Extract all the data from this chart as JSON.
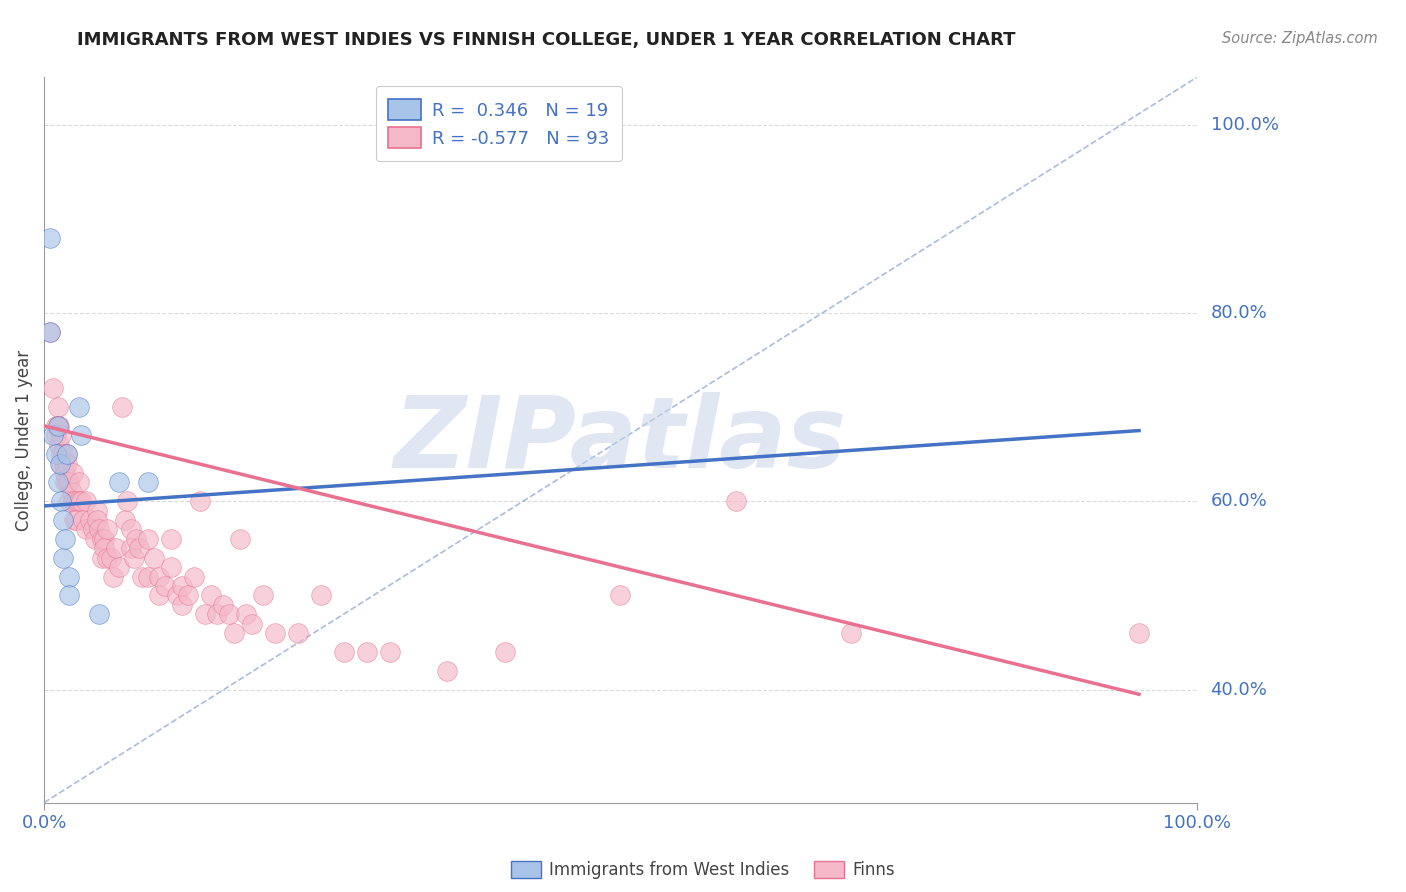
{
  "title": "IMMIGRANTS FROM WEST INDIES VS FINNISH COLLEGE, UNDER 1 YEAR CORRELATION CHART",
  "source": "Source: ZipAtlas.com",
  "ylabel": "College, Under 1 year",
  "xlim": [
    0.0,
    1.0
  ],
  "ylim": [
    0.28,
    1.05
  ],
  "y_tick_positions": [
    0.4,
    0.6,
    0.8,
    1.0
  ],
  "y_tick_labels": [
    "40.0%",
    "60.0%",
    "80.0%",
    "100.0%"
  ],
  "color_blue": "#a8c4e8",
  "color_pink": "#f4b8c8",
  "line_blue": "#4472c4",
  "line_pink": "#e87090",
  "dashed_color": "#7090c8",
  "watermark_color": "#c8d4e8",
  "blue_points": [
    [
      0.005,
      0.88
    ],
    [
      0.005,
      0.78
    ],
    [
      0.008,
      0.67
    ],
    [
      0.01,
      0.65
    ],
    [
      0.012,
      0.68
    ],
    [
      0.012,
      0.62
    ],
    [
      0.014,
      0.64
    ],
    [
      0.015,
      0.6
    ],
    [
      0.016,
      0.58
    ],
    [
      0.016,
      0.54
    ],
    [
      0.018,
      0.56
    ],
    [
      0.02,
      0.65
    ],
    [
      0.022,
      0.52
    ],
    [
      0.022,
      0.5
    ],
    [
      0.03,
      0.7
    ],
    [
      0.032,
      0.67
    ],
    [
      0.048,
      0.48
    ],
    [
      0.065,
      0.62
    ],
    [
      0.09,
      0.62
    ]
  ],
  "pink_points": [
    [
      0.005,
      0.78
    ],
    [
      0.008,
      0.72
    ],
    [
      0.01,
      0.68
    ],
    [
      0.01,
      0.67
    ],
    [
      0.012,
      0.7
    ],
    [
      0.012,
      0.68
    ],
    [
      0.013,
      0.68
    ],
    [
      0.013,
      0.66
    ],
    [
      0.015,
      0.67
    ],
    [
      0.015,
      0.65
    ],
    [
      0.015,
      0.64
    ],
    [
      0.016,
      0.65
    ],
    [
      0.017,
      0.64
    ],
    [
      0.018,
      0.63
    ],
    [
      0.018,
      0.62
    ],
    [
      0.02,
      0.65
    ],
    [
      0.02,
      0.64
    ],
    [
      0.02,
      0.62
    ],
    [
      0.022,
      0.62
    ],
    [
      0.022,
      0.6
    ],
    [
      0.024,
      0.61
    ],
    [
      0.025,
      0.63
    ],
    [
      0.025,
      0.6
    ],
    [
      0.026,
      0.58
    ],
    [
      0.028,
      0.6
    ],
    [
      0.028,
      0.58
    ],
    [
      0.03,
      0.62
    ],
    [
      0.03,
      0.6
    ],
    [
      0.032,
      0.6
    ],
    [
      0.034,
      0.58
    ],
    [
      0.036,
      0.6
    ],
    [
      0.036,
      0.57
    ],
    [
      0.04,
      0.58
    ],
    [
      0.042,
      0.57
    ],
    [
      0.044,
      0.56
    ],
    [
      0.046,
      0.59
    ],
    [
      0.046,
      0.58
    ],
    [
      0.048,
      0.57
    ],
    [
      0.05,
      0.56
    ],
    [
      0.05,
      0.54
    ],
    [
      0.052,
      0.56
    ],
    [
      0.052,
      0.55
    ],
    [
      0.055,
      0.57
    ],
    [
      0.055,
      0.54
    ],
    [
      0.058,
      0.54
    ],
    [
      0.06,
      0.52
    ],
    [
      0.062,
      0.55
    ],
    [
      0.065,
      0.53
    ],
    [
      0.068,
      0.7
    ],
    [
      0.07,
      0.58
    ],
    [
      0.072,
      0.6
    ],
    [
      0.075,
      0.57
    ],
    [
      0.075,
      0.55
    ],
    [
      0.078,
      0.54
    ],
    [
      0.08,
      0.56
    ],
    [
      0.082,
      0.55
    ],
    [
      0.085,
      0.52
    ],
    [
      0.09,
      0.56
    ],
    [
      0.09,
      0.52
    ],
    [
      0.095,
      0.54
    ],
    [
      0.1,
      0.52
    ],
    [
      0.1,
      0.5
    ],
    [
      0.105,
      0.51
    ],
    [
      0.11,
      0.56
    ],
    [
      0.11,
      0.53
    ],
    [
      0.115,
      0.5
    ],
    [
      0.12,
      0.51
    ],
    [
      0.12,
      0.49
    ],
    [
      0.125,
      0.5
    ],
    [
      0.13,
      0.52
    ],
    [
      0.135,
      0.6
    ],
    [
      0.14,
      0.48
    ],
    [
      0.145,
      0.5
    ],
    [
      0.15,
      0.48
    ],
    [
      0.155,
      0.49
    ],
    [
      0.16,
      0.48
    ],
    [
      0.165,
      0.46
    ],
    [
      0.17,
      0.56
    ],
    [
      0.175,
      0.48
    ],
    [
      0.18,
      0.47
    ],
    [
      0.19,
      0.5
    ],
    [
      0.2,
      0.46
    ],
    [
      0.22,
      0.46
    ],
    [
      0.24,
      0.5
    ],
    [
      0.26,
      0.44
    ],
    [
      0.28,
      0.44
    ],
    [
      0.3,
      0.44
    ],
    [
      0.35,
      0.42
    ],
    [
      0.4,
      0.44
    ],
    [
      0.5,
      0.5
    ],
    [
      0.6,
      0.6
    ],
    [
      0.7,
      0.46
    ],
    [
      0.95,
      0.46
    ]
  ],
  "blue_line_x": [
    0.0,
    0.95
  ],
  "blue_line_y": [
    0.595,
    0.675
  ],
  "pink_line_x": [
    0.0,
    0.95
  ],
  "pink_line_y": [
    0.68,
    0.395
  ],
  "dashed_line_x": [
    0.0,
    1.0
  ],
  "dashed_line_y": [
    0.28,
    1.05
  ],
  "background_color": "#ffffff",
  "grid_color": "#cccccc",
  "legend_r1": "R =  0.346   N = 19",
  "legend_r2": "R = -0.577   N = 93",
  "bottom_legend_labels": [
    "Immigrants from West Indies",
    "Finns"
  ]
}
